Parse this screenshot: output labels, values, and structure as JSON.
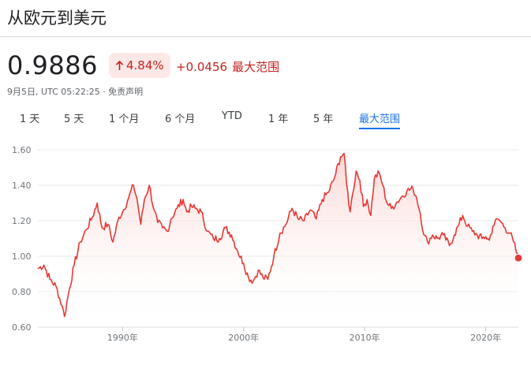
{
  "header": {
    "title": "从欧元到美元"
  },
  "quote": {
    "price": "0.9886",
    "change_pct": "4.84%",
    "change_abs": "+0.0456",
    "change_period": "最大范围",
    "meta": "9月5日, UTC 05:22:25 · 免责声明"
  },
  "tabs": [
    {
      "label": "1 天",
      "active": false
    },
    {
      "label": "5 天",
      "active": false
    },
    {
      "label": "1 个月",
      "active": false
    },
    {
      "label": "6 个月",
      "active": false
    },
    {
      "label": "YTD",
      "active": false
    },
    {
      "label": "1 年",
      "active": false
    },
    {
      "label": "5 年",
      "active": false
    },
    {
      "label": "最大范围",
      "active": true
    }
  ],
  "colors": {
    "line": "#e53935",
    "fill_top": "#fad2cf",
    "badge_bg": "#fce8e6",
    "accent": "#1a73e8",
    "down": "#c5221f"
  },
  "chart_data": {
    "type": "area",
    "x_ticks": [
      "1990年",
      "2000年",
      "2010年",
      "2020年"
    ],
    "y_ticks": [
      "1.60",
      "1.40",
      "1.20",
      "1.00",
      "0.80",
      "0.60"
    ],
    "ylim": [
      0.6,
      1.6
    ],
    "grid": true,
    "series": [
      {
        "x": [
          1983.0,
          1983.5,
          1984.0,
          1984.5,
          1985.0,
          1985.2,
          1985.5,
          1986.0,
          1986.5,
          1987.0,
          1987.5,
          1987.9,
          1988.3,
          1988.8,
          1989.2,
          1989.7,
          1990.0,
          1990.5,
          1990.9,
          1991.2,
          1991.5,
          1991.8,
          1992.2,
          1992.6,
          1992.9,
          1993.3,
          1993.7,
          1994.0,
          1994.5,
          1995.0,
          1995.3,
          1995.7,
          1996.0,
          1996.5,
          1997.0,
          1997.5,
          1998.0,
          1998.5,
          1999.0,
          1999.5,
          2000.0,
          2000.4,
          2000.8,
          2001.2,
          2001.6,
          2002.0,
          2002.5,
          2003.0,
          2003.5,
          2004.0,
          2004.5,
          2005.0,
          2005.5,
          2006.0,
          2006.5,
          2007.0,
          2007.5,
          2008.0,
          2008.3,
          2008.5,
          2008.8,
          2009.0,
          2009.3,
          2009.6,
          2009.9,
          2010.2,
          2010.5,
          2010.8,
          2011.2,
          2011.5,
          2011.8,
          2012.2,
          2012.6,
          2013.0,
          2013.5,
          2014.0,
          2014.3,
          2014.6,
          2014.9,
          2015.2,
          2015.6,
          2016.0,
          2016.5,
          2017.0,
          2017.4,
          2017.8,
          2018.1,
          2018.5,
          2018.9,
          2019.3,
          2019.7,
          2020.0,
          2020.3,
          2020.6,
          2021.0,
          2021.3,
          2021.6,
          2022.0,
          2022.3,
          2022.6,
          2022.7
        ],
        "y": [
          0.93,
          0.95,
          0.87,
          0.83,
          0.72,
          0.66,
          0.78,
          0.95,
          1.08,
          1.15,
          1.22,
          1.3,
          1.16,
          1.18,
          1.08,
          1.22,
          1.25,
          1.33,
          1.4,
          1.32,
          1.18,
          1.32,
          1.4,
          1.26,
          1.19,
          1.16,
          1.14,
          1.21,
          1.27,
          1.32,
          1.25,
          1.28,
          1.27,
          1.25,
          1.14,
          1.1,
          1.1,
          1.16,
          1.12,
          1.03,
          0.96,
          0.88,
          0.86,
          0.92,
          0.88,
          0.87,
          1.0,
          1.13,
          1.18,
          1.27,
          1.21,
          1.2,
          1.26,
          1.21,
          1.32,
          1.36,
          1.44,
          1.56,
          1.58,
          1.41,
          1.25,
          1.35,
          1.48,
          1.43,
          1.28,
          1.32,
          1.23,
          1.44,
          1.47,
          1.4,
          1.31,
          1.27,
          1.3,
          1.33,
          1.37,
          1.38,
          1.33,
          1.24,
          1.12,
          1.08,
          1.12,
          1.1,
          1.12,
          1.06,
          1.12,
          1.18,
          1.23,
          1.17,
          1.14,
          1.12,
          1.1,
          1.11,
          1.09,
          1.17,
          1.21,
          1.19,
          1.16,
          1.13,
          1.08,
          1.01,
          0.99
        ]
      }
    ]
  }
}
